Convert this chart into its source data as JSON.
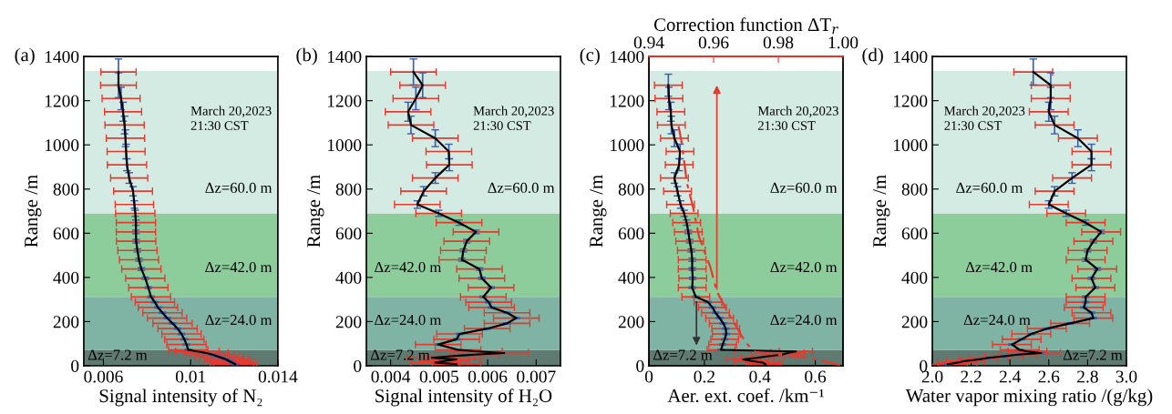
{
  "chart_data": [
    {
      "type": "line",
      "title": "(a)",
      "xlabel": "Signal intensity of N₂",
      "ylabel": "Range /m",
      "xlim": [
        0.0051,
        0.014
      ],
      "xticks": [
        0.006,
        0.01,
        0.014
      ],
      "ylim": [
        0,
        1400
      ],
      "yticks": [
        0,
        200,
        400,
        600,
        800,
        1000,
        1200,
        1400
      ],
      "grid": false,
      "legend": false,
      "marker": "none",
      "line_style": "solid",
      "annotations": [
        "March 20,2023\n21:30 CST"
      ],
      "bands": [
        {
          "axis": "y",
          "from": 0,
          "to": 72,
          "label": "Δz=7.2 m",
          "color": "#5f7a70"
        },
        {
          "axis": "y",
          "from": 72,
          "to": 312,
          "label": "Δz=24.0 m",
          "color": "#7fb3a4"
        },
        {
          "axis": "y",
          "from": 312,
          "to": 690,
          "label": "Δz=42.0 m",
          "color": "#8dcc9b"
        },
        {
          "axis": "y",
          "from": 690,
          "to": 1335,
          "label": "Δz=60.0 m",
          "color": "#d3ebe2"
        }
      ],
      "series": [
        {
          "color": "#000000",
          "x": [
            0.01204,
            0.0119,
            0.01176,
            0.01163,
            0.01142,
            0.01121,
            0.011,
            0.01072,
            0.01031,
            0.00989,
            0.00981,
            0.00971,
            0.00958,
            0.0094,
            0.00917,
            0.00892,
            0.00871,
            0.0085,
            0.00836,
            0.00818,
            0.00806,
            0.00792,
            0.00774,
            0.00763,
            0.00756,
            0.0075,
            0.00749,
            0.00749,
            0.00746,
            0.00742,
            0.00736,
            0.00718,
            0.00708,
            0.00704,
            0.00701,
            0.00697,
            0.0069,
            0.00681,
            0.00669,
            0.00669
          ],
          "values": [
            7.2,
            14.4,
            21.6,
            28.8,
            36,
            43.2,
            50.4,
            57.6,
            64.8,
            72,
            96,
            120,
            144,
            168,
            192,
            216,
            240,
            264,
            288,
            312,
            354,
            396,
            438,
            480,
            522,
            564,
            606,
            648,
            690,
            730,
            790,
            850,
            910,
            970,
            1030,
            1090,
            1150,
            1210,
            1270,
            1330
          ],
          "errors": [
            2,
            2,
            2,
            2,
            2,
            2,
            2,
            2,
            2,
            3,
            3,
            3,
            3,
            3,
            3,
            3,
            3,
            3,
            3,
            4,
            4,
            5,
            6,
            7,
            7,
            8,
            8,
            12,
            14,
            17,
            21,
            24,
            27,
            33,
            38,
            40,
            43,
            51,
            56,
            59
          ],
          "xerrors": [
            0.001,
            0.001,
            0.001,
            0.001,
            0.001,
            0.001,
            0.001,
            0.001,
            0.001,
            0.0009,
            0.0009,
            0.0009,
            0.0009,
            0.0009,
            0.0009,
            0.0009,
            0.0009,
            0.0009,
            0.0009,
            0.0009,
            0.0009,
            0.0009,
            0.0009,
            0.0009,
            0.0009,
            0.0009,
            0.0009,
            0.0009,
            0.0009,
            0.00088,
            0.00089,
            0.00085,
            0.0009,
            0.00087,
            0.00088,
            0.0009,
            0.00085,
            0.00087,
            0.00082,
            0.00081
          ]
        }
      ]
    },
    {
      "type": "line",
      "title": "(b)",
      "xlabel": "Signal intensity of H₂O",
      "ylabel": "Range /m",
      "xlim": [
        0.0035,
        0.0075
      ],
      "xticks": [
        0.004,
        0.005,
        0.006,
        0.007
      ],
      "ylim": [
        0,
        1400
      ],
      "yticks": [
        0,
        200,
        400,
        600,
        800,
        1000,
        1200,
        1400
      ],
      "grid": false,
      "legend": false,
      "marker": "none",
      "line_style": "solid",
      "annotations": [
        "March 20,2023\n21:30 CST"
      ],
      "bands": [
        {
          "axis": "y",
          "from": 0,
          "to": 72,
          "label": "Δz=7.2 m",
          "color": "#5f7a70"
        },
        {
          "axis": "y",
          "from": 72,
          "to": 312,
          "label": "Δz=24.0 m",
          "color": "#7fb3a4"
        },
        {
          "axis": "y",
          "from": 312,
          "to": 690,
          "label": "Δz=42.0 m",
          "color": "#8dcc9b"
        },
        {
          "axis": "y",
          "from": 690,
          "to": 1335,
          "label": "Δz=60.0 m",
          "color": "#d3ebe2"
        }
      ],
      "series": [
        {
          "color": "#000000",
          "x": [
            0.00536,
            0.00492,
            0.00511,
            0.00536,
            0.00485,
            0.00523,
            0.00573,
            0.00634,
            0.0058,
            0.00539,
            0.00498,
            0.00536,
            0.00542,
            0.00599,
            0.0064,
            0.00659,
            0.0064,
            0.00608,
            0.00602,
            0.00591,
            0.00607,
            0.00588,
            0.00583,
            0.00547,
            0.0055,
            0.00557,
            0.00576,
            0.00541,
            0.00499,
            0.00455,
            0.00468,
            0.00492,
            0.00521,
            0.0052,
            0.00492,
            0.00442,
            0.00436,
            0.00452,
            0.00466,
            0.00447
          ],
          "values": [
            7.2,
            14.4,
            21.6,
            28.8,
            36,
            43.2,
            50.4,
            57.6,
            64.8,
            72,
            96,
            120,
            144,
            168,
            192,
            216,
            240,
            264,
            288,
            312,
            354,
            396,
            438,
            480,
            522,
            564,
            606,
            648,
            690,
            730,
            790,
            850,
            910,
            970,
            1030,
            1090,
            1150,
            1210,
            1270,
            1330
          ],
          "errors": [
            null,
            null,
            null,
            null,
            null,
            null,
            null,
            null,
            null,
            3,
            3,
            3,
            3,
            3,
            3,
            3,
            3,
            3,
            3,
            4,
            4,
            5,
            6,
            7,
            7,
            8,
            8,
            12,
            14,
            17,
            21,
            24,
            27,
            33,
            38,
            40,
            43,
            51,
            56,
            59
          ],
          "xerrors": [
            0.0005,
            0.0005,
            0.0005,
            0.0005,
            0.0005,
            0.0005,
            0.0005,
            0.0005,
            0.0005,
            0.00047,
            0.00047,
            0.00047,
            0.00047,
            0.00047,
            0.00047,
            0.00047,
            0.00047,
            0.00047,
            0.00047,
            0.00047,
            0.00047,
            0.00047,
            0.00047,
            0.00047,
            0.00047,
            0.00047,
            0.00047,
            0.00047,
            0.00047,
            0.00047,
            0.00047,
            0.00047,
            0.00047,
            0.00047,
            0.00047,
            0.00047,
            0.00047,
            0.00047,
            0.00047,
            0.00047
          ]
        }
      ]
    },
    {
      "type": "line",
      "title": "(c)",
      "xlabel": "Aer. ext. coef. /km⁻¹",
      "x2label": "Correction function ΔT$_{r}$",
      "ylabel": "Range /m",
      "xlim": [
        0,
        0.7
      ],
      "xticks": [
        0,
        0.2,
        0.4,
        0.6
      ],
      "x2lim": [
        0.94,
        1.0
      ],
      "x2ticks": [
        0.94,
        0.96,
        0.98,
        {
          "value": 1.0,
          "label": "1.00"
        }
      ],
      "ylim": [
        0,
        1400
      ],
      "yticks": [
        0,
        200,
        400,
        600,
        800,
        1000,
        1200,
        1400
      ],
      "grid": false,
      "legend": false,
      "marker": "none",
      "line_style": "solid",
      "annotations": [
        "March 20,2023\n21:30 CST"
      ],
      "bands": [
        {
          "axis": "y",
          "from": 0,
          "to": 72,
          "label": "Δz=7.2 m",
          "color": "#5f7a70"
        },
        {
          "axis": "y",
          "from": 72,
          "to": 312,
          "label": "Δz=24.0 m",
          "color": "#7fb3a4"
        },
        {
          "axis": "y",
          "from": 312,
          "to": 690,
          "label": "Δz=42.0 m",
          "color": "#8dcc9b"
        },
        {
          "axis": "y",
          "from": 690,
          "to": 1335,
          "label": "Δz=60.0 m",
          "color": "#d3ebe2"
        }
      ],
      "series": [
        {
          "color": "#000000",
          "x": [
            0.42,
            0.41,
            0.37,
            0.34,
            0.39,
            0.43,
            0.48,
            0.5,
            0.53,
            0.26,
            0.266,
            0.273,
            0.279,
            0.277,
            0.268,
            0.255,
            0.24,
            0.229,
            0.213,
            0.169,
            0.156,
            0.158,
            0.156,
            0.156,
            0.153,
            0.147,
            0.142,
            0.136,
            0.127,
            0.114,
            0.103,
            0.092,
            0.109,
            0.112,
            0.092,
            0.081,
            0.079,
            0.072,
            0.07
          ],
          "values": [
            7.2,
            14.4,
            21.6,
            28.8,
            36,
            43.2,
            50.4,
            57.6,
            64.8,
            72,
            96,
            120,
            144,
            168,
            192,
            216,
            240,
            264,
            288,
            312,
            354,
            396,
            438,
            480,
            522,
            564,
            606,
            648,
            690,
            730,
            790,
            850,
            910,
            970,
            1030,
            1090,
            1150,
            1210,
            1270
          ],
          "errors": [
            null,
            null,
            null,
            null,
            null,
            null,
            null,
            null,
            null,
            3,
            3,
            3,
            3,
            3,
            3,
            3,
            3,
            3,
            3,
            4,
            4,
            5,
            6,
            7,
            7,
            8,
            8,
            12,
            14,
            17,
            21,
            24,
            27,
            33,
            38,
            40,
            43,
            51,
            50
          ],
          "xerrors": [
            0.06,
            0.06,
            0.06,
            0.06,
            0.06,
            0.06,
            0.06,
            0.06,
            0.06,
            0.05,
            0.05,
            0.05,
            0.05,
            0.05,
            0.05,
            0.05,
            0.05,
            0.05,
            0.05,
            0.05,
            0.05,
            0.05,
            0.05,
            0.05,
            0.05,
            0.05,
            0.05,
            0.05,
            0.05,
            0.05,
            0.05,
            0.05,
            0.05,
            0.05,
            0.05,
            0.05,
            0.05,
            0.05,
            0.05
          ]
        },
        {
          "type": "line",
          "axis": "x2",
          "color": "#e8392e",
          "line_style": "dashed",
          "x": [
            0.999,
            0.99,
            0.973,
            0.97,
            0.965,
            0.961,
            0.959,
            0.9555,
            0.9536,
            0.9517,
            0.9503,
            0.9489
          ],
          "values": [
            4,
            34,
            62,
            103,
            226,
            336,
            446,
            583,
            720,
            830,
            995,
            1105
          ]
        }
      ]
    },
    {
      "type": "line",
      "title": "(d)",
      "xlabel": "Water vapor mixing ratio /(g/kg)",
      "ylabel": "Range /m",
      "xlim": [
        2.0,
        3.0
      ],
      "xticks": [
        {
          "value": 2.0,
          "label": "2.0"
        },
        2.2,
        2.4,
        2.6,
        2.8,
        {
          "value": 3.0,
          "label": "3.0"
        }
      ],
      "ylim": [
        0,
        1400
      ],
      "yticks": [
        0,
        200,
        400,
        600,
        800,
        1000,
        1200,
        1400
      ],
      "grid": false,
      "legend": false,
      "marker": "none",
      "line_style": "solid",
      "annotations": [
        "March 20,2023\n21:30 CST"
      ],
      "bands": [
        {
          "axis": "y",
          "from": 0,
          "to": 72,
          "label": "Δz=7.2 m",
          "color": "#5f7a70"
        },
        {
          "axis": "y",
          "from": 72,
          "to": 312,
          "label": "Δz=24.0 m",
          "color": "#7fb3a4"
        },
        {
          "axis": "y",
          "from": 312,
          "to": 690,
          "label": "Δz=42.0 m",
          "color": "#8dcc9b"
        },
        {
          "axis": "y",
          "from": 690,
          "to": 1335,
          "label": "Δz=60.0 m",
          "color": "#d3ebe2"
        }
      ],
      "series": [
        {
          "color": "#000000",
          "x": [
            2.08,
            2.13,
            2.17,
            2.24,
            2.29,
            2.37,
            2.44,
            2.56,
            2.49,
            2.45,
            2.41,
            2.46,
            2.51,
            2.59,
            2.71,
            2.83,
            2.82,
            2.78,
            2.79,
            2.79,
            2.84,
            2.82,
            2.85,
            2.79,
            2.8,
            2.83,
            2.87,
            2.79,
            2.69,
            2.6,
            2.63,
            2.72,
            2.82,
            2.82,
            2.75,
            2.63,
            2.6,
            2.61,
            2.61,
            2.52
          ],
          "values": [
            7.2,
            14.4,
            21.6,
            28.8,
            36,
            43.2,
            50.4,
            57.6,
            64.8,
            72,
            96,
            120,
            144,
            168,
            192,
            216,
            240,
            264,
            288,
            312,
            354,
            396,
            438,
            480,
            522,
            564,
            606,
            648,
            690,
            730,
            790,
            850,
            910,
            970,
            1030,
            1090,
            1150,
            1210,
            1270,
            1330
          ],
          "errors": [
            2,
            2,
            2,
            2,
            2,
            2,
            2,
            2,
            2,
            3,
            3,
            3,
            3,
            3,
            3,
            3,
            3,
            3,
            3,
            4,
            4,
            5,
            6,
            7,
            7,
            8,
            8,
            12,
            14,
            17,
            21,
            24,
            27,
            33,
            38,
            40,
            43,
            51,
            56,
            59
          ],
          "xerrors": [
            0.1,
            0.1,
            0.1,
            0.1,
            0.1,
            0.1,
            0.1,
            0.1,
            0.1,
            0.1,
            0.1,
            0.1,
            0.1,
            0.1,
            0.1,
            0.1,
            0.1,
            0.1,
            0.1,
            0.1,
            0.1,
            0.1,
            0.1,
            0.1,
            0.1,
            0.1,
            0.1,
            0.1,
            0.1,
            0.1,
            0.1,
            0.1,
            0.1,
            0.1,
            0.1,
            0.1,
            0.1,
            0.1,
            0.1,
            0.1
          ]
        }
      ]
    }
  ]
}
